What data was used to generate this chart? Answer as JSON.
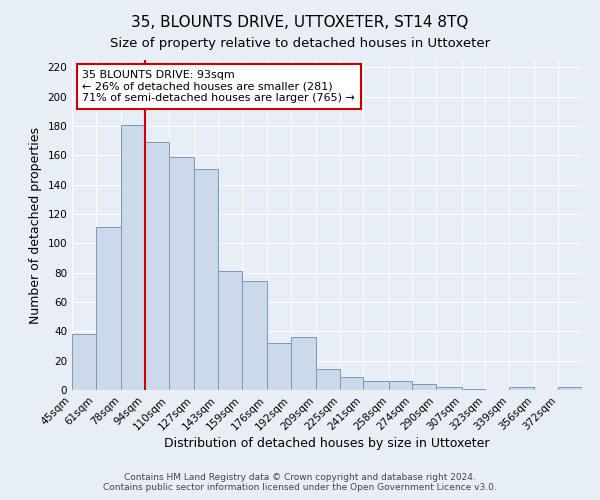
{
  "title": "35, BLOUNTS DRIVE, UTTOXETER, ST14 8TQ",
  "subtitle": "Size of property relative to detached houses in Uttoxeter",
  "xlabel": "Distribution of detached houses by size in Uttoxeter",
  "ylabel": "Number of detached properties",
  "bin_labels": [
    "45sqm",
    "61sqm",
    "78sqm",
    "94sqm",
    "110sqm",
    "127sqm",
    "143sqm",
    "159sqm",
    "176sqm",
    "192sqm",
    "209sqm",
    "225sqm",
    "241sqm",
    "258sqm",
    "274sqm",
    "290sqm",
    "307sqm",
    "323sqm",
    "339sqm",
    "356sqm",
    "372sqm"
  ],
  "bin_edges": [
    45,
    61,
    78,
    94,
    110,
    127,
    143,
    159,
    176,
    192,
    209,
    225,
    241,
    258,
    274,
    290,
    307,
    323,
    339,
    356,
    372,
    388
  ],
  "bar_heights": [
    38,
    111,
    181,
    169,
    159,
    151,
    81,
    74,
    32,
    36,
    14,
    9,
    6,
    6,
    4,
    2,
    1,
    0,
    2,
    0,
    2
  ],
  "bar_face_color": "#ccd9ea",
  "bar_edge_color": "#7799bb",
  "property_line_x": 94,
  "property_line_color": "#cc0000",
  "annotation_text": "35 BLOUNTS DRIVE: 93sqm\n← 26% of detached houses are smaller (281)\n71% of semi-detached houses are larger (765) →",
  "annotation_box_color": "#ffffff",
  "annotation_box_edge": "#cc0000",
  "ylim": [
    0,
    225
  ],
  "yticks": [
    0,
    20,
    40,
    60,
    80,
    100,
    120,
    140,
    160,
    180,
    200,
    220
  ],
  "footer1": "Contains HM Land Registry data © Crown copyright and database right 2024.",
  "footer2": "Contains public sector information licensed under the Open Government Licence v3.0.",
  "background_color": "#e8eef5",
  "plot_bg_color": "#e8eef5",
  "grid_color": "#ffffff",
  "title_fontsize": 11,
  "subtitle_fontsize": 9.5,
  "axis_label_fontsize": 9,
  "tick_fontsize": 7.5,
  "footer_fontsize": 6.5
}
